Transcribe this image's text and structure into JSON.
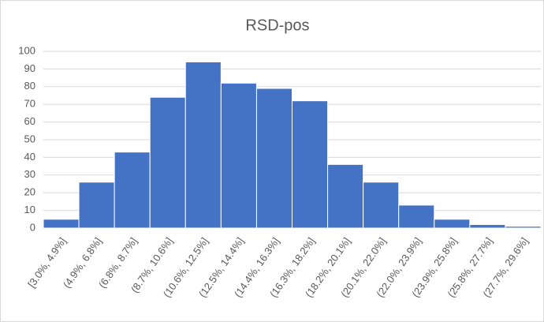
{
  "chart_data": {
    "type": "bar",
    "title": "RSD-pos",
    "categories": [
      "[3.0%, 4.9%]",
      "(4.9%, 6.8%]",
      "(6.8%, 8.7%]",
      "(8.7%, 10.6%]",
      "(10.6%, 12.5%]",
      "(12.5%, 14.4%]",
      "(14.4%, 16.3%]",
      "(16.3%, 18.2%]",
      "(18.2%, 20.1%]",
      "(20.1%, 22.0%]",
      "(22.0%, 23.9%]",
      "(23.9%, 25.8%]",
      "(25.8%, 27.7%]",
      "(27.7%, 29.6%]"
    ],
    "values": [
      5,
      26,
      43,
      74,
      94,
      82,
      79,
      72,
      36,
      26,
      13,
      5,
      2,
      1
    ],
    "color": "#4472c4",
    "ylim": [
      0,
      100
    ],
    "yticks": [
      0,
      10,
      20,
      30,
      40,
      50,
      60,
      70,
      80,
      90,
      100
    ],
    "grid": true
  }
}
